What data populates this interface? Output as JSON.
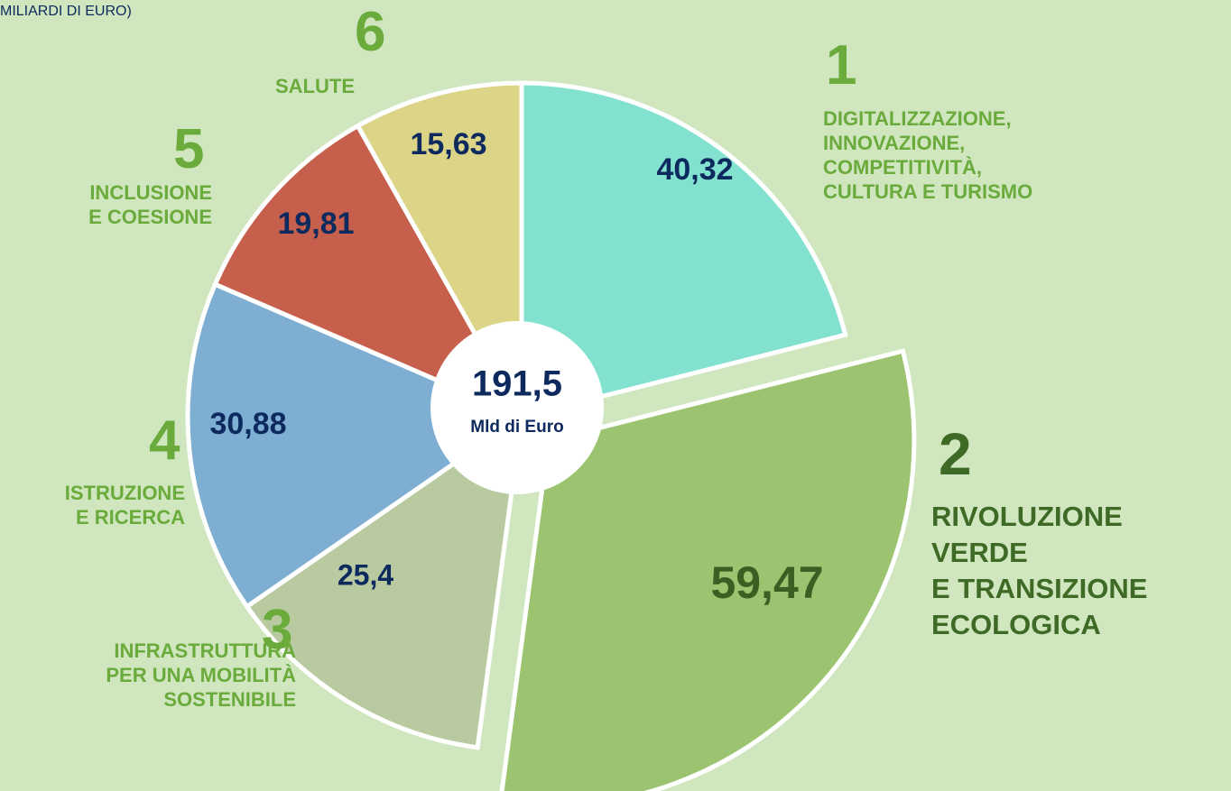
{
  "chart_data": {
    "type": "pie",
    "subtitle": "MILIARDI DI EURO)",
    "mission_numbers": [
      "1",
      "2",
      "3",
      "4",
      "5",
      "6"
    ],
    "categories": [
      "DIGITALIZZAZIONE,\nINNOVAZIONE,\nCOMPETITIVITÀ,\nCULTURA E TURISMO",
      "RIVOLUZIONE\nVERDE\nE TRANSIZIONE\nECOLOGICA",
      "INFRASTRUTTURA\nPER UNA MOBILITÀ\nSOSTENIBILE",
      "ISTRUZIONE\nE RICERCA",
      "INCLUSIONE\nE COESIONE",
      "SALUTE"
    ],
    "values": [
      40.32,
      59.47,
      25.4,
      30.88,
      19.81,
      15.63
    ],
    "value_labels": [
      "40,32",
      "59,47",
      "25,4",
      "30,88",
      "19,81",
      "15,63"
    ],
    "colors": [
      "#82e2cf",
      "#9cc470",
      "#b9caa0",
      "#7eaed2",
      "#c65f4b",
      "#dcd588"
    ],
    "total": {
      "value": 191.5,
      "label": "191,5"
    },
    "total_unit": "Mld di Euro"
  }
}
